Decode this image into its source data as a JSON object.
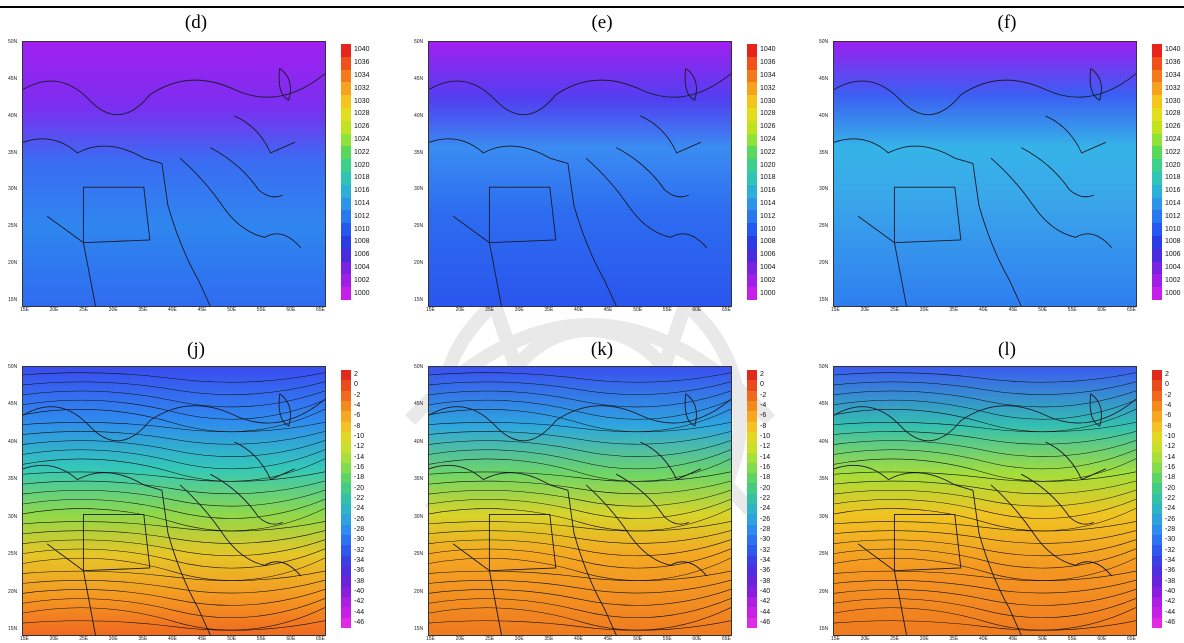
{
  "panels_top": [
    {
      "label": "(d)"
    },
    {
      "label": "(e)"
    },
    {
      "label": "(f)"
    }
  ],
  "panels_bottom": [
    {
      "label": "(j)"
    },
    {
      "label": "(k)"
    },
    {
      "label": "(l)"
    }
  ],
  "axis": {
    "lat": [
      "50N",
      "45N",
      "40N",
      "35N",
      "30N",
      "25N",
      "20N",
      "15N"
    ],
    "lon": [
      "15E",
      "20E",
      "25E",
      "30E",
      "35E",
      "40E",
      "45E",
      "50E",
      "55E",
      "60E",
      "65E"
    ]
  },
  "colorbar_top": {
    "ticks": [
      "1040",
      "1036",
      "1034",
      "1032",
      "1030",
      "1028",
      "1026",
      "1024",
      "1022",
      "1020",
      "1018",
      "1016",
      "1014",
      "1012",
      "1010",
      "1008",
      "1006",
      "1004",
      "1002",
      "1000"
    ],
    "colors": [
      "#e8231c",
      "#f0501a",
      "#f47a1c",
      "#f7a21f",
      "#f5c51e",
      "#e3de1c",
      "#bfe31e",
      "#8fe23a",
      "#59d95c",
      "#3bd08c",
      "#2fc4b4",
      "#2db0d8",
      "#2c95ea",
      "#2a78f0",
      "#2558f0",
      "#2a3ce6",
      "#4a2ce0",
      "#7a22e3",
      "#a01fe6",
      "#c61fe9"
    ]
  },
  "colorbar_bottom": {
    "ticks": [
      "2",
      "0",
      "-2",
      "-4",
      "-6",
      "-8",
      "-10",
      "-12",
      "-14",
      "-16",
      "-18",
      "-20",
      "-22",
      "-24",
      "-26",
      "-28",
      "-30",
      "-32",
      "-34",
      "-36",
      "-38",
      "-40",
      "-42",
      "-44",
      "-46"
    ],
    "colors": [
      "#e02a1e",
      "#ea4a1c",
      "#f06a1c",
      "#f48a1c",
      "#f6a820",
      "#f2c322",
      "#e2d722",
      "#c8e02a",
      "#a6e03a",
      "#82dc4c",
      "#5fd466",
      "#44cc86",
      "#34c2a6",
      "#2eb4c4",
      "#2ea2de",
      "#2e8cee",
      "#2e72f2",
      "#2f58ee",
      "#3a40e6",
      "#4e2ee0",
      "#6a22dc",
      "#8a1ede",
      "#aa1fe2",
      "#c81fe6",
      "#e02ae6"
    ]
  },
  "colors": {
    "ink": "#000000",
    "border": "#333333"
  }
}
